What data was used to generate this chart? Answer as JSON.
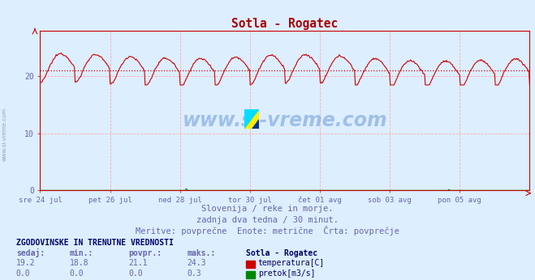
{
  "title": "Sotla - Rogatec",
  "title_color": "#aa0000",
  "bg_color": "#ddeeff",
  "grid_color": "#ffaaaa",
  "axis_color": "#cc0000",
  "temp_line_color": "#cc0000",
  "temp_avg_color": "#cc0000",
  "flow_line_color": "#008800",
  "ylim": [
    0,
    28
  ],
  "yticks": [
    0,
    10,
    20
  ],
  "xtick_labels": [
    "sre 24 jul",
    "pet 26 jul",
    "ned 28 jul",
    "tor 30 jul",
    "čet 01 avg",
    "sob 03 avg",
    "pon 05 avg"
  ],
  "avg_temp": 21.1,
  "min_temp": 18.8,
  "max_temp": 24.3,
  "current_temp": 19.2,
  "min_flow": 0.0,
  "max_flow": 0.3,
  "current_flow": 0.0,
  "avg_flow": 0.0,
  "subtitle1": "Slovenija / reke in morje.",
  "subtitle2": "zadnja dva tedna / 30 minut.",
  "subtitle3": "Meritve: povprečne  Enote: metrične  Črta: povprečje",
  "table_title": "ZGODOVINSKE IN TRENUTNE VREDNOSTI",
  "col_sedaj": "sedaj:",
  "col_min": "min.:",
  "col_povpr": "povpr.:",
  "col_maks": "maks.:",
  "station_label": "Sotla - Rogatec",
  "temp_label": "temperatura[C]",
  "flow_label": "pretok[m3/s]",
  "text_color": "#6666aa",
  "table_header_color": "#6666aa",
  "table_bold_color": "#000066",
  "watermark_text": "www.si-vreme.com",
  "watermark_color": "#5588cc",
  "num_points": 672
}
